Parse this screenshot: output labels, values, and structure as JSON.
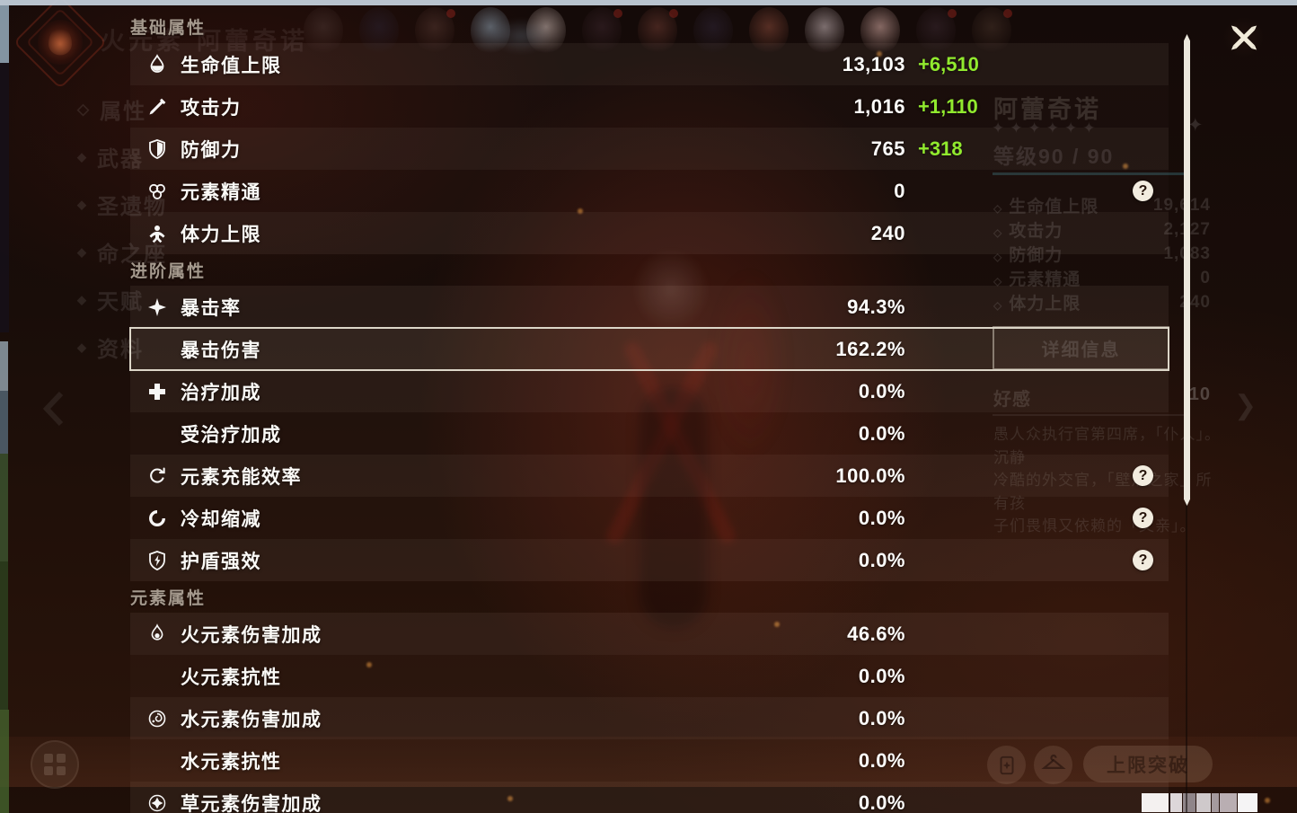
{
  "stats_panel": {
    "help_glyph": "?",
    "sections": [
      {
        "title": "基础属性",
        "rows": [
          {
            "icon": "hp-icon",
            "label": "生命值上限",
            "value": "13,103",
            "bonus": "+6,510"
          },
          {
            "icon": "atk-icon",
            "label": "攻击力",
            "value": "1,016",
            "bonus": "+1,110"
          },
          {
            "icon": "def-icon",
            "label": "防御力",
            "value": "765",
            "bonus": "+318"
          },
          {
            "icon": "em-icon",
            "label": "元素精通",
            "value": "0",
            "help": true
          },
          {
            "icon": "stamina-icon",
            "label": "体力上限",
            "value": "240"
          }
        ]
      },
      {
        "title": "进阶属性",
        "rows": [
          {
            "icon": "crit-rate-icon",
            "label": "暴击率",
            "value": "94.3%"
          },
          {
            "label": "暴击伤害",
            "value": "162.2%",
            "selected": true
          },
          {
            "icon": "healing-bonus-icon",
            "label": "治疗加成",
            "value": "0.0%"
          },
          {
            "label": "受治疗加成",
            "value": "0.0%"
          },
          {
            "icon": "energy-recharge-icon",
            "label": "元素充能效率",
            "value": "100.0%",
            "help": true
          },
          {
            "icon": "cd-reduction-icon",
            "label": "冷却缩减",
            "value": "0.0%",
            "help": true
          },
          {
            "icon": "shield-strength-icon",
            "label": "护盾强效",
            "value": "0.0%",
            "help": true
          }
        ]
      },
      {
        "title": "元素属性",
        "rows": [
          {
            "icon": "pyro-icon",
            "label": "火元素伤害加成",
            "value": "46.6%"
          },
          {
            "label": "火元素抗性",
            "value": "0.0%"
          },
          {
            "icon": "hydro-icon",
            "label": "水元素伤害加成",
            "value": "0.0%"
          },
          {
            "label": "水元素抗性",
            "value": "0.0%"
          },
          {
            "icon": "dendro-icon",
            "label": "草元素伤害加成",
            "value": "0.0%"
          }
        ]
      }
    ]
  },
  "background": {
    "element_label": "火元素",
    "character_name": "阿蕾奇诺",
    "rarity_stars": 6,
    "star_glyph": "✦",
    "level_label": "等级90 / 90",
    "stats": [
      {
        "label": "生命值上限",
        "value": "19,614"
      },
      {
        "label": "攻击力",
        "value": "2,127"
      },
      {
        "label": "防御力",
        "value": "1,083"
      },
      {
        "label": "元素精通",
        "value": "0"
      },
      {
        "label": "体力上限",
        "value": "240"
      }
    ],
    "detail_button": "详细信息",
    "friendship_label": "好感",
    "friendship_value": "10",
    "description_lines": [
      "愚人众执行官第四席，「仆人」。沉静",
      "冷酷的外交官，「壁炉之家」所有孩",
      "子们畏惧又依赖的「父亲」。"
    ],
    "sidebar_items": [
      "属性",
      "武器",
      "圣遗物",
      "命之座",
      "天赋",
      "资料"
    ],
    "ascend_button": "上限突破"
  },
  "colors": {
    "bonus_green": "#91ea2e"
  }
}
